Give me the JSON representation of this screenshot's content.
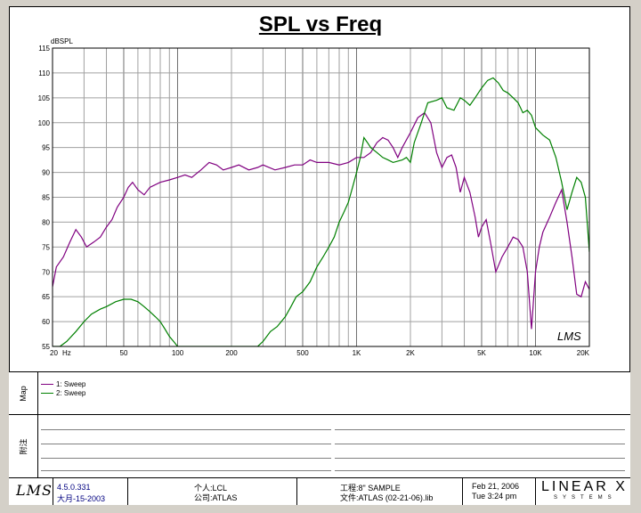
{
  "app": {
    "version": "4.5.0.331",
    "version_date": "大月-15-2003",
    "brand_logo": "LMS",
    "vendor_logo": "LINEAR X",
    "vendor_sub": "SYSTEMS"
  },
  "chart_data": {
    "type": "line",
    "title": "SPL vs Freq",
    "ylabel": "dBSPL",
    "xlabel": "Hz",
    "xscale": "log",
    "xlim": [
      20,
      20000
    ],
    "ylim": [
      55,
      115
    ],
    "yticks": [
      55,
      60,
      65,
      70,
      75,
      80,
      85,
      90,
      95,
      100,
      105,
      110,
      115
    ],
    "xtick_labels": [
      {
        "v": 20,
        "t": "20"
      },
      {
        "v": 50,
        "t": "50"
      },
      {
        "v": 100,
        "t": "100"
      },
      {
        "v": 200,
        "t": "200"
      },
      {
        "v": 500,
        "t": "500"
      },
      {
        "v": 1000,
        "t": "1K"
      },
      {
        "v": 2000,
        "t": "2K"
      },
      {
        "v": 5000,
        "t": "5K"
      },
      {
        "v": 10000,
        "t": "10K"
      },
      {
        "v": 20000,
        "t": "20K"
      }
    ],
    "grid": true,
    "watermark": "LMS",
    "series": [
      {
        "name": "1: Sweep",
        "color": "#800080",
        "points": [
          [
            20,
            67
          ],
          [
            21,
            71
          ],
          [
            23,
            73
          ],
          [
            25,
            76
          ],
          [
            27,
            78.5
          ],
          [
            29,
            77
          ],
          [
            31,
            75
          ],
          [
            34,
            76
          ],
          [
            37,
            77
          ],
          [
            40,
            79
          ],
          [
            43,
            80.5
          ],
          [
            46,
            83
          ],
          [
            50,
            85
          ],
          [
            53,
            87
          ],
          [
            56,
            88
          ],
          [
            60,
            86.5
          ],
          [
            65,
            85.5
          ],
          [
            70,
            87
          ],
          [
            80,
            88
          ],
          [
            90,
            88.5
          ],
          [
            100,
            89
          ],
          [
            110,
            89.5
          ],
          [
            120,
            89
          ],
          [
            135,
            90.5
          ],
          [
            150,
            92
          ],
          [
            165,
            91.5
          ],
          [
            180,
            90.5
          ],
          [
            200,
            91
          ],
          [
            220,
            91.5
          ],
          [
            250,
            90.5
          ],
          [
            280,
            91
          ],
          [
            300,
            91.5
          ],
          [
            350,
            90.5
          ],
          [
            400,
            91
          ],
          [
            450,
            91.5
          ],
          [
            500,
            91.5
          ],
          [
            550,
            92.5
          ],
          [
            600,
            92
          ],
          [
            700,
            92
          ],
          [
            800,
            91.5
          ],
          [
            900,
            92
          ],
          [
            1000,
            93
          ],
          [
            1100,
            93
          ],
          [
            1200,
            94
          ],
          [
            1300,
            96
          ],
          [
            1400,
            97
          ],
          [
            1500,
            96.5
          ],
          [
            1600,
            95
          ],
          [
            1700,
            93
          ],
          [
            1800,
            95
          ],
          [
            2000,
            98
          ],
          [
            2200,
            101
          ],
          [
            2400,
            102
          ],
          [
            2600,
            100
          ],
          [
            2800,
            94
          ],
          [
            3000,
            91
          ],
          [
            3200,
            93
          ],
          [
            3400,
            93.5
          ],
          [
            3600,
            91
          ],
          [
            3800,
            86
          ],
          [
            4000,
            89
          ],
          [
            4300,
            86
          ],
          [
            4600,
            81
          ],
          [
            4800,
            77
          ],
          [
            5000,
            79
          ],
          [
            5300,
            80.5
          ],
          [
            5600,
            76
          ],
          [
            6000,
            70
          ],
          [
            6500,
            73
          ],
          [
            7000,
            75
          ],
          [
            7500,
            77
          ],
          [
            8000,
            76.5
          ],
          [
            8500,
            75
          ],
          [
            9000,
            70
          ],
          [
            9500,
            58.5
          ],
          [
            10000,
            70
          ],
          [
            10500,
            75
          ],
          [
            11000,
            78
          ],
          [
            12000,
            81
          ],
          [
            13000,
            84
          ],
          [
            14000,
            86.5
          ],
          [
            15000,
            80
          ],
          [
            16000,
            73
          ],
          [
            17000,
            65.5
          ],
          [
            18000,
            65
          ],
          [
            19000,
            68
          ],
          [
            20000,
            66.5
          ]
        ]
      },
      {
        "name": "2: Sweep",
        "color": "#008000",
        "points": [
          [
            20,
            55
          ],
          [
            22,
            55
          ],
          [
            24,
            56
          ],
          [
            27,
            58
          ],
          [
            30,
            60
          ],
          [
            33,
            61.5
          ],
          [
            37,
            62.5
          ],
          [
            40,
            63
          ],
          [
            45,
            64
          ],
          [
            50,
            64.5
          ],
          [
            55,
            64.5
          ],
          [
            60,
            64
          ],
          [
            65,
            63
          ],
          [
            70,
            62
          ],
          [
            75,
            61
          ],
          [
            80,
            60
          ],
          [
            85,
            58.5
          ],
          [
            90,
            57
          ],
          [
            95,
            56
          ],
          [
            100,
            55
          ],
          [
            280,
            55
          ],
          [
            300,
            56
          ],
          [
            330,
            58
          ],
          [
            360,
            59
          ],
          [
            400,
            61
          ],
          [
            430,
            63
          ],
          [
            460,
            65
          ],
          [
            500,
            66
          ],
          [
            550,
            68
          ],
          [
            600,
            71
          ],
          [
            650,
            73
          ],
          [
            700,
            75
          ],
          [
            750,
            77
          ],
          [
            800,
            80
          ],
          [
            850,
            82
          ],
          [
            900,
            84
          ],
          [
            950,
            87
          ],
          [
            1000,
            90
          ],
          [
            1050,
            93
          ],
          [
            1100,
            97
          ],
          [
            1150,
            96
          ],
          [
            1200,
            95
          ],
          [
            1300,
            94
          ],
          [
            1400,
            93
          ],
          [
            1500,
            92.5
          ],
          [
            1600,
            92
          ],
          [
            1800,
            92.5
          ],
          [
            1900,
            93
          ],
          [
            2000,
            92
          ],
          [
            2100,
            96
          ],
          [
            2300,
            100
          ],
          [
            2500,
            104
          ],
          [
            2800,
            104.5
          ],
          [
            3000,
            105
          ],
          [
            3200,
            103
          ],
          [
            3500,
            102.5
          ],
          [
            3800,
            105
          ],
          [
            4000,
            104.5
          ],
          [
            4300,
            103.5
          ],
          [
            4600,
            105
          ],
          [
            5000,
            107
          ],
          [
            5400,
            108.5
          ],
          [
            5800,
            109
          ],
          [
            6200,
            108
          ],
          [
            6600,
            106.5
          ],
          [
            7000,
            106
          ],
          [
            7500,
            105
          ],
          [
            8000,
            104
          ],
          [
            8500,
            102
          ],
          [
            9000,
            102.5
          ],
          [
            9500,
            101.5
          ],
          [
            10000,
            99
          ],
          [
            11000,
            97.5
          ],
          [
            12000,
            96.5
          ],
          [
            13000,
            93
          ],
          [
            14000,
            88
          ],
          [
            15000,
            82.5
          ],
          [
            16000,
            86
          ],
          [
            17000,
            89
          ],
          [
            18000,
            88
          ],
          [
            19000,
            85
          ],
          [
            20000,
            74
          ]
        ]
      }
    ]
  },
  "map_panel": {
    "label": "Map",
    "legend": [
      {
        "name": "1: Sweep",
        "color": "#800080"
      },
      {
        "name": "2: Sweep",
        "color": "#008000"
      }
    ]
  },
  "notes_panel": {
    "label": "附注"
  },
  "footer": {
    "person_label": "个人:",
    "person_value": "LCL",
    "company_label": "公司:",
    "company_value": "ATLAS",
    "project_label": "工程:",
    "project_value": "8\" SAMPLE",
    "file_label": "文件:",
    "file_value": "ATLAS (02-21-06).lib",
    "date": "Feb 21, 2006",
    "time": "Tue  3:24 pm"
  }
}
